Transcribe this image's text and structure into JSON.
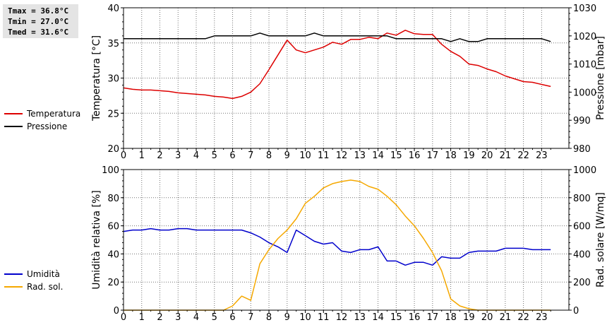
{
  "stats": {
    "tmax": "Tmax = 36.8°C",
    "tmin": "Tmin = 27.0°C",
    "tmed": "Tmed = 31.6°C"
  },
  "chart_data": [
    {
      "type": "line",
      "x_ticks": [
        "0",
        "1",
        "2",
        "3",
        "4",
        "5",
        "6",
        "7",
        "8",
        "9",
        "10",
        "11",
        "12",
        "13",
        "14",
        "15",
        "16",
        "17",
        "18",
        "19",
        "20",
        "21",
        "22",
        "23"
      ],
      "xlim": [
        0,
        24.5
      ],
      "grid": true,
      "legend_position": "left",
      "ylabel_left": "Temperatura [°C]",
      "ylabel_right": "Pressione [mbar]",
      "ylim_left": [
        20,
        40
      ],
      "ylim_right": [
        980,
        1030
      ],
      "yticks_left": [
        "20",
        "25",
        "30",
        "35",
        "40"
      ],
      "yticks_right": [
        "980",
        "990",
        "1000",
        "1010",
        "1020",
        "1030"
      ],
      "series": [
        {
          "name": "Temperatura",
          "axis": "left",
          "color": "#dd0000",
          "x": [
            0,
            0.5,
            1,
            1.5,
            2,
            2.5,
            3,
            3.5,
            4,
            4.5,
            5,
            5.5,
            6,
            6.5,
            7,
            7.5,
            8,
            8.5,
            9,
            9.5,
            10,
            10.5,
            11,
            11.5,
            12,
            12.5,
            13,
            13.5,
            14,
            14.5,
            15,
            15.5,
            16,
            16.5,
            17,
            17.5,
            18,
            18.5,
            19,
            19.5,
            20,
            20.5,
            21,
            21.5,
            22,
            22.5,
            23,
            23.5
          ],
          "values": [
            28.6,
            28.4,
            28.3,
            28.3,
            28.2,
            28.1,
            27.9,
            27.8,
            27.7,
            27.6,
            27.4,
            27.3,
            27.1,
            27.4,
            28.0,
            29.2,
            31.2,
            33.3,
            35.4,
            34.0,
            33.6,
            34.0,
            34.4,
            35.1,
            34.8,
            35.5,
            35.5,
            35.8,
            35.6,
            36.4,
            36.1,
            36.8,
            36.3,
            36.2,
            36.2,
            34.8,
            33.8,
            33.1,
            32.0,
            31.8,
            31.3,
            30.9,
            30.3,
            29.9,
            29.5,
            29.4,
            29.1,
            28.8
          ]
        },
        {
          "name": "Pressione",
          "axis": "right",
          "color": "#000000",
          "x": [
            0,
            0.5,
            1,
            1.5,
            2,
            2.5,
            3,
            3.5,
            4,
            4.5,
            5,
            5.5,
            6,
            6.5,
            7,
            7.5,
            8,
            8.5,
            9,
            9.5,
            10,
            10.5,
            11,
            11.5,
            12,
            12.5,
            13,
            13.5,
            14,
            14.5,
            15,
            15.5,
            16,
            16.5,
            17,
            17.5,
            18,
            18.5,
            19,
            19.5,
            20,
            20.5,
            21,
            21.5,
            22,
            22.5,
            23,
            23.5
          ],
          "values": [
            1019,
            1019,
            1019,
            1019,
            1019,
            1019,
            1019,
            1019,
            1019,
            1019,
            1020,
            1020,
            1020,
            1020,
            1020,
            1021,
            1020,
            1020,
            1020,
            1020,
            1020,
            1021,
            1020,
            1020,
            1020,
            1020,
            1020,
            1020,
            1020,
            1020,
            1019,
            1019,
            1019,
            1019,
            1019,
            1019,
            1018,
            1019,
            1018,
            1018,
            1019,
            1019,
            1019,
            1019,
            1019,
            1019,
            1019,
            1018
          ]
        }
      ]
    },
    {
      "type": "line",
      "x_ticks": [
        "0",
        "1",
        "2",
        "3",
        "4",
        "5",
        "6",
        "7",
        "8",
        "9",
        "10",
        "11",
        "12",
        "13",
        "14",
        "15",
        "16",
        "17",
        "18",
        "19",
        "20",
        "21",
        "22",
        "23"
      ],
      "xlim": [
        0,
        24.5
      ],
      "grid": true,
      "legend_position": "left",
      "ylabel_left": "Umidità relativa [%]",
      "ylabel_right": "Rad. solare [W/mq]",
      "ylim_left": [
        0,
        100
      ],
      "ylim_right": [
        0,
        1000
      ],
      "yticks_left": [
        "0",
        "20",
        "40",
        "60",
        "80",
        "100"
      ],
      "yticks_right": [
        "0",
        "200",
        "400",
        "600",
        "800",
        "1000"
      ],
      "series": [
        {
          "name": "Umidità",
          "axis": "left",
          "color": "#0000cc",
          "x": [
            0,
            0.5,
            1,
            1.5,
            2,
            2.5,
            3,
            3.5,
            4,
            4.5,
            5,
            5.5,
            6,
            6.5,
            7,
            7.5,
            8,
            8.5,
            9,
            9.5,
            10,
            10.5,
            11,
            11.5,
            12,
            12.5,
            13,
            13.5,
            14,
            14.5,
            15,
            15.5,
            16,
            16.5,
            17,
            17.5,
            18,
            18.5,
            19,
            19.5,
            20,
            20.5,
            21,
            21.5,
            22,
            22.5,
            23,
            23.5
          ],
          "values": [
            56,
            57,
            57,
            58,
            57,
            57,
            58,
            58,
            57,
            57,
            57,
            57,
            57,
            57,
            55,
            52,
            48,
            45,
            41,
            57,
            53,
            49,
            47,
            48,
            42,
            41,
            43,
            43,
            45,
            35,
            35,
            32,
            34,
            34,
            32,
            38,
            37,
            37,
            41,
            42,
            42,
            42,
            44,
            44,
            44,
            43,
            43,
            43
          ]
        },
        {
          "name": "Rad. sol.",
          "axis": "right",
          "color": "#f5a800",
          "x": [
            0,
            0.5,
            1,
            1.5,
            2,
            2.5,
            3,
            3.5,
            4,
            4.5,
            5,
            5.5,
            6,
            6.5,
            7,
            7.5,
            8,
            8.5,
            9,
            9.5,
            10,
            10.5,
            11,
            11.5,
            12,
            12.5,
            13,
            13.5,
            14,
            14.5,
            15,
            15.5,
            16,
            16.5,
            17,
            17.5,
            18,
            18.5,
            19,
            19.5,
            20,
            20.5,
            21,
            21.5,
            22,
            22.5,
            23,
            23.5
          ],
          "values": [
            0,
            0,
            0,
            0,
            0,
            0,
            0,
            0,
            0,
            0,
            0,
            0,
            30,
            100,
            70,
            330,
            430,
            510,
            570,
            650,
            760,
            810,
            870,
            900,
            915,
            925,
            915,
            880,
            860,
            810,
            750,
            670,
            600,
            510,
            410,
            280,
            80,
            30,
            10,
            0,
            0,
            0,
            0,
            0,
            0,
            0,
            0,
            0
          ]
        }
      ]
    }
  ]
}
